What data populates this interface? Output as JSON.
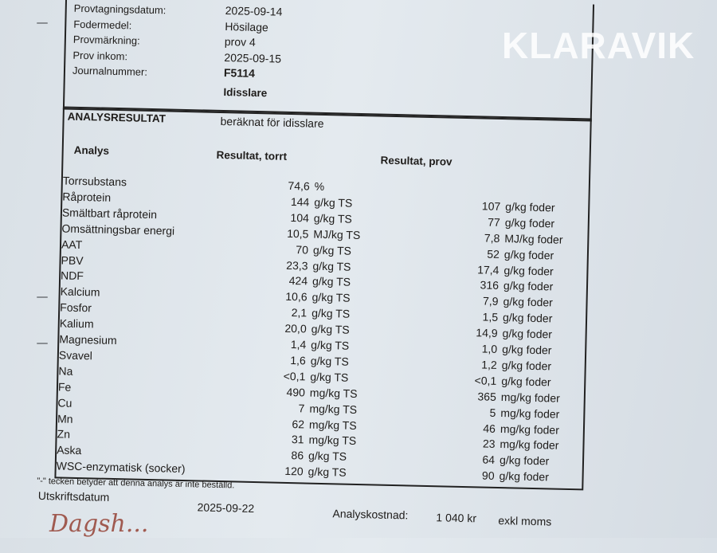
{
  "meta": [
    {
      "label": "Provtagningsdatum:",
      "value": "2025-09-14"
    },
    {
      "label": "Fodermedel:",
      "value": "Hösilage"
    },
    {
      "label": "Provmärkning:",
      "value": "prov 4"
    },
    {
      "label": "Prov inkom:",
      "value": "2025-09-15"
    },
    {
      "label": "Journalnummer:",
      "value": "F5114"
    }
  ],
  "animal": "Idisslare",
  "section": {
    "title": "ANALYSRESULTAT",
    "subtitle": "beräknat för idisslare"
  },
  "columns": {
    "analysis": "Analys",
    "dry": "Resultat, torrt",
    "sample": "Resultat, prov"
  },
  "rows": [
    {
      "name": "Torrsubstans",
      "dry": "74,6",
      "dry_unit": "%",
      "sample": "",
      "sample_unit": ""
    },
    {
      "name": "Råprotein",
      "dry": "144",
      "dry_unit": "g/kg TS",
      "sample": "107",
      "sample_unit": "g/kg foder"
    },
    {
      "name": "Smältbart råprotein",
      "dry": "104",
      "dry_unit": "g/kg TS",
      "sample": "77",
      "sample_unit": "g/kg foder"
    },
    {
      "name": "Omsättningsbar energi",
      "dry": "10,5",
      "dry_unit": "MJ/kg TS",
      "sample": "7,8",
      "sample_unit": "MJ/kg foder"
    },
    {
      "name": "AAT",
      "dry": "70",
      "dry_unit": "g/kg TS",
      "sample": "52",
      "sample_unit": "g/kg foder"
    },
    {
      "name": "PBV",
      "dry": "23,3",
      "dry_unit": "g/kg TS",
      "sample": "17,4",
      "sample_unit": "g/kg foder"
    },
    {
      "name": "NDF",
      "dry": "424",
      "dry_unit": "g/kg TS",
      "sample": "316",
      "sample_unit": "g/kg foder"
    },
    {
      "name": "Kalcium",
      "dry": "10,6",
      "dry_unit": "g/kg TS",
      "sample": "7,9",
      "sample_unit": "g/kg foder"
    },
    {
      "name": "Fosfor",
      "dry": "2,1",
      "dry_unit": "g/kg TS",
      "sample": "1,5",
      "sample_unit": "g/kg foder"
    },
    {
      "name": "Kalium",
      "dry": "20,0",
      "dry_unit": "g/kg TS",
      "sample": "14,9",
      "sample_unit": "g/kg foder"
    },
    {
      "name": "Magnesium",
      "dry": "1,4",
      "dry_unit": "g/kg TS",
      "sample": "1,0",
      "sample_unit": "g/kg foder"
    },
    {
      "name": "Svavel",
      "dry": "1,6",
      "dry_unit": "g/kg TS",
      "sample": "1,2",
      "sample_unit": "g/kg foder"
    },
    {
      "name": "Na",
      "dry": "<0,1",
      "dry_unit": "g/kg TS",
      "sample": "<0,1",
      "sample_unit": "g/kg foder"
    },
    {
      "name": "Fe",
      "dry": "490",
      "dry_unit": "mg/kg TS",
      "sample": "365",
      "sample_unit": "mg/kg foder"
    },
    {
      "name": "Cu",
      "dry": "7",
      "dry_unit": "mg/kg TS",
      "sample": "5",
      "sample_unit": "mg/kg foder"
    },
    {
      "name": "Mn",
      "dry": "62",
      "dry_unit": "mg/kg TS",
      "sample": "46",
      "sample_unit": "mg/kg foder"
    },
    {
      "name": "Zn",
      "dry": "31",
      "dry_unit": "mg/kg TS",
      "sample": "23",
      "sample_unit": "mg/kg foder"
    },
    {
      "name": "Aska",
      "dry": "86",
      "dry_unit": "g/kg TS",
      "sample": "64",
      "sample_unit": "g/kg foder"
    },
    {
      "name": "WSC-enzymatisk (socker)",
      "dry": "120",
      "dry_unit": "g/kg TS",
      "sample": "90",
      "sample_unit": "g/kg foder"
    }
  ],
  "footnote": "\"-\" tecken betyder att denna analys är inte beställd.",
  "print_label": "Utskriftsdatum",
  "print_date": "2025-09-22",
  "cost_label": "Analyskostnad:",
  "cost_value": "1 040 kr",
  "cost_note": "exkl moms",
  "handwriting": "Dagsh...",
  "watermark": "KLARAVIK"
}
